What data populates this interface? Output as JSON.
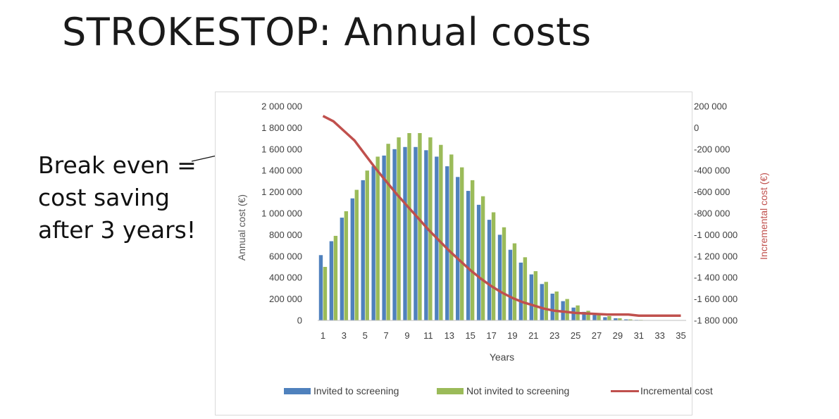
{
  "slide": {
    "title": "STROKESTOP: Annual costs",
    "annotation_lines": [
      "Break even =",
      "cost saving",
      "after 3 years!"
    ]
  },
  "chart_data": {
    "type": "bar",
    "xlabel": "Years",
    "ylabel": "Annual cost (€)",
    "y2label": "Incremental cost (€)",
    "ylim": [
      0,
      2000000
    ],
    "y2lim": [
      -1800000,
      200000
    ],
    "yticks": [
      "0",
      "200 000",
      "400 000",
      "600 000",
      "800 000",
      "1 000 000",
      "1 200 000",
      "1 400 000",
      "1 600 000",
      "1 800 000",
      "2 000 000"
    ],
    "y2ticks": [
      "-1 800 000",
      "-1 600 000",
      "-1 400 000",
      "-1 200 000",
      "-1 000 000",
      "-800 000",
      "-600 000",
      "-400 000",
      "-200 000",
      "0",
      "200 000"
    ],
    "categories": [
      1,
      2,
      3,
      4,
      5,
      6,
      7,
      8,
      9,
      10,
      11,
      12,
      13,
      14,
      15,
      16,
      17,
      18,
      19,
      20,
      21,
      22,
      23,
      24,
      25,
      26,
      27,
      28,
      29,
      30,
      31,
      32,
      33,
      34,
      35
    ],
    "xtick_labels": [
      "1",
      "3",
      "5",
      "7",
      "9",
      "11",
      "13",
      "15",
      "17",
      "19",
      "21",
      "23",
      "25",
      "27",
      "29",
      "31",
      "33",
      "35"
    ],
    "series": [
      {
        "name": "Invited to screening",
        "type": "bar",
        "axis": "left",
        "color": "#4f81bd",
        "values": [
          610000,
          740000,
          960000,
          1140000,
          1310000,
          1440000,
          1540000,
          1600000,
          1620000,
          1620000,
          1590000,
          1530000,
          1440000,
          1340000,
          1210000,
          1080000,
          940000,
          800000,
          660000,
          540000,
          430000,
          340000,
          250000,
          180000,
          120000,
          80000,
          50000,
          30000,
          20000,
          10000,
          5000,
          3000,
          2000,
          1000,
          1000
        ]
      },
      {
        "name": "Not invited to screening",
        "type": "bar",
        "axis": "left",
        "color": "#9bbb59",
        "values": [
          500000,
          790000,
          1020000,
          1220000,
          1400000,
          1530000,
          1650000,
          1710000,
          1750000,
          1750000,
          1710000,
          1640000,
          1550000,
          1430000,
          1310000,
          1160000,
          1010000,
          870000,
          720000,
          590000,
          460000,
          360000,
          270000,
          200000,
          140000,
          90000,
          60000,
          40000,
          20000,
          10000,
          5000,
          3000,
          2000,
          1000,
          1000
        ]
      },
      {
        "name": "Incremental cost",
        "type": "line",
        "axis": "right",
        "color": "#c0504d",
        "values": [
          110000,
          60000,
          -30000,
          -120000,
          -250000,
          -380000,
          -500000,
          -620000,
          -730000,
          -840000,
          -950000,
          -1050000,
          -1150000,
          -1240000,
          -1330000,
          -1410000,
          -1480000,
          -1540000,
          -1590000,
          -1630000,
          -1660000,
          -1690000,
          -1710000,
          -1720000,
          -1730000,
          -1735000,
          -1740000,
          -1745000,
          -1745000,
          -1745000,
          -1755000,
          -1755000,
          -1755000,
          -1755000,
          -1755000
        ]
      }
    ],
    "legend_position": "bottom",
    "grid": false
  }
}
